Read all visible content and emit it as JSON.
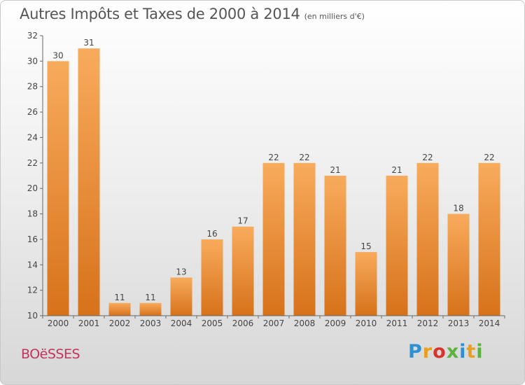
{
  "header": {
    "title": "Autres Impôts et Taxes de 2000 à 2014",
    "subtitle": "(en milliers d'€)"
  },
  "commune": "BOëSSES",
  "logo": {
    "text": "Proxiti",
    "letters": [
      {
        "ch": "P",
        "color": "#2e8fd1"
      },
      {
        "ch": "r",
        "color": "#e8a020"
      },
      {
        "ch": "o",
        "color": "#d8342c"
      },
      {
        "ch": "x",
        "color": "#5bb23c"
      },
      {
        "ch": "i",
        "color": "#2e8fd1"
      },
      {
        "ch": "t",
        "color": "#e8a020"
      },
      {
        "ch": "i",
        "color": "#5bb23c"
      }
    ]
  },
  "chart_data": {
    "type": "bar",
    "categories": [
      "2000",
      "2001",
      "2002",
      "2003",
      "2004",
      "2005",
      "2006",
      "2007",
      "2008",
      "2009",
      "2010",
      "2011",
      "2012",
      "2013",
      "2014"
    ],
    "values": [
      30,
      31,
      11,
      11,
      13,
      16,
      17,
      22,
      22,
      21,
      15,
      21,
      22,
      18,
      22
    ],
    "ylim": [
      10,
      32
    ],
    "yticks": [
      10,
      12,
      14,
      16,
      18,
      20,
      22,
      24,
      26,
      28,
      30,
      32
    ],
    "data_labels": true,
    "grid": false,
    "colors": {
      "bar_light": "#f8ab5c",
      "bar_dark": "#d7721a",
      "axis": "#666666",
      "text": "#444444"
    }
  }
}
